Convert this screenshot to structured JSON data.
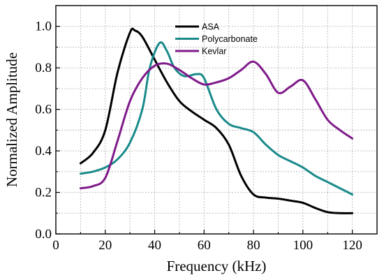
{
  "chart_data": {
    "type": "line",
    "xlabel": "Frequency (kHz)",
    "ylabel": "Normalized Amplitude",
    "xlim": [
      0,
      130
    ],
    "ylim": [
      0,
      1.1
    ],
    "x_ticks": [
      0,
      20,
      40,
      60,
      80,
      100,
      120
    ],
    "y_ticks": [
      0.0,
      0.2,
      0.4,
      0.6,
      0.8,
      1.0
    ],
    "x_tick_labels": [
      "0",
      "20",
      "40",
      "60",
      "80",
      "100",
      "120"
    ],
    "y_tick_labels": [
      "0.0",
      "0.2",
      "0.4",
      "0.6",
      "0.8",
      "1.0"
    ],
    "grid": true,
    "legend_position": "top-center",
    "series": [
      {
        "name": "ASA",
        "color": "#000000",
        "points": [
          [
            10,
            0.34
          ],
          [
            15,
            0.39
          ],
          [
            20,
            0.5
          ],
          [
            25,
            0.78
          ],
          [
            30,
            0.97
          ],
          [
            32,
            0.98
          ],
          [
            35,
            0.95
          ],
          [
            40,
            0.84
          ],
          [
            45,
            0.73
          ],
          [
            50,
            0.64
          ],
          [
            55,
            0.59
          ],
          [
            60,
            0.55
          ],
          [
            65,
            0.51
          ],
          [
            70,
            0.43
          ],
          [
            75,
            0.28
          ],
          [
            80,
            0.19
          ],
          [
            85,
            0.175
          ],
          [
            90,
            0.17
          ],
          [
            95,
            0.16
          ],
          [
            100,
            0.15
          ],
          [
            105,
            0.125
          ],
          [
            110,
            0.105
          ],
          [
            115,
            0.1
          ],
          [
            120,
            0.1
          ]
        ]
      },
      {
        "name": "Polycarbonate",
        "color": "#1a8a8a",
        "points": [
          [
            10,
            0.29
          ],
          [
            15,
            0.3
          ],
          [
            20,
            0.32
          ],
          [
            25,
            0.36
          ],
          [
            30,
            0.44
          ],
          [
            35,
            0.6
          ],
          [
            38,
            0.8
          ],
          [
            42,
            0.92
          ],
          [
            45,
            0.88
          ],
          [
            48,
            0.8
          ],
          [
            52,
            0.76
          ],
          [
            57,
            0.77
          ],
          [
            60,
            0.75
          ],
          [
            65,
            0.6
          ],
          [
            70,
            0.53
          ],
          [
            75,
            0.51
          ],
          [
            80,
            0.49
          ],
          [
            85,
            0.43
          ],
          [
            90,
            0.38
          ],
          [
            95,
            0.35
          ],
          [
            100,
            0.32
          ],
          [
            105,
            0.28
          ],
          [
            110,
            0.25
          ],
          [
            115,
            0.22
          ],
          [
            120,
            0.19
          ]
        ]
      },
      {
        "name": "Kevlar",
        "color": "#7f1a8a",
        "points": [
          [
            10,
            0.22
          ],
          [
            15,
            0.23
          ],
          [
            20,
            0.27
          ],
          [
            25,
            0.45
          ],
          [
            30,
            0.64
          ],
          [
            35,
            0.75
          ],
          [
            40,
            0.81
          ],
          [
            45,
            0.82
          ],
          [
            50,
            0.79
          ],
          [
            55,
            0.75
          ],
          [
            60,
            0.72
          ],
          [
            65,
            0.73
          ],
          [
            70,
            0.75
          ],
          [
            75,
            0.79
          ],
          [
            80,
            0.83
          ],
          [
            85,
            0.77
          ],
          [
            90,
            0.68
          ],
          [
            95,
            0.71
          ],
          [
            100,
            0.74
          ],
          [
            105,
            0.65
          ],
          [
            110,
            0.55
          ],
          [
            115,
            0.5
          ],
          [
            120,
            0.46
          ]
        ]
      }
    ]
  }
}
